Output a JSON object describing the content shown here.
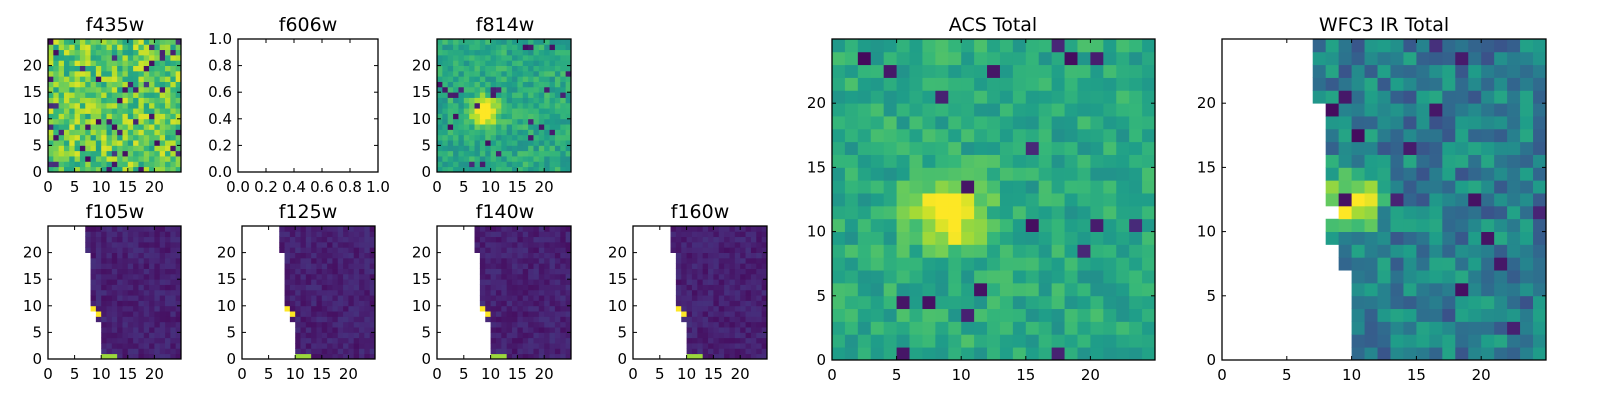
{
  "chart_data": [
    {
      "type": "heatmap",
      "title": "f435w",
      "pattern": "noise",
      "seed": 11,
      "colormap": "viridis",
      "x_ticks": [
        "0",
        "5",
        "10",
        "15",
        "20"
      ],
      "y_ticks": [
        "0",
        "5",
        "10",
        "15",
        "20"
      ],
      "xlim": [
        0,
        25
      ],
      "ylim": [
        0,
        25
      ]
    },
    {
      "type": "heatmap",
      "title": "f606w",
      "pattern": "empty",
      "x_ticks": [
        "0.0",
        "0.2",
        "0.4",
        "0.6",
        "0.8",
        "1.0"
      ],
      "y_ticks": [
        "0.0",
        "0.2",
        "0.4",
        "0.6",
        "0.8",
        "1.0"
      ],
      "xlim": [
        0,
        1
      ],
      "ylim": [
        0,
        1
      ]
    },
    {
      "type": "heatmap",
      "title": "f814w",
      "pattern": "blob",
      "seed": 23,
      "colormap": "viridis",
      "x_ticks": [
        "0",
        "5",
        "10",
        "15",
        "20"
      ],
      "y_ticks": [
        "0",
        "5",
        "10",
        "15",
        "20"
      ],
      "xlim": [
        0,
        25
      ],
      "ylim": [
        0,
        25
      ]
    },
    {
      "type": "heatmap",
      "title": "f105w",
      "pattern": "ir",
      "seed": 31,
      "colormap": "viridis",
      "x_ticks": [
        "0",
        "5",
        "10",
        "15",
        "20"
      ],
      "y_ticks": [
        "0",
        "5",
        "10",
        "15",
        "20"
      ],
      "xlim": [
        0,
        25
      ],
      "ylim": [
        0,
        25
      ]
    },
    {
      "type": "heatmap",
      "title": "f125w",
      "pattern": "ir",
      "seed": 37,
      "colormap": "viridis",
      "x_ticks": [
        "0",
        "5",
        "10",
        "15",
        "20"
      ],
      "y_ticks": [
        "0",
        "5",
        "10",
        "15",
        "20"
      ],
      "xlim": [
        0,
        25
      ],
      "ylim": [
        0,
        25
      ]
    },
    {
      "type": "heatmap",
      "title": "f140w",
      "pattern": "ir",
      "seed": 41,
      "colormap": "viridis",
      "x_ticks": [
        "0",
        "5",
        "10",
        "15",
        "20"
      ],
      "y_ticks": [
        "0",
        "5",
        "10",
        "15",
        "20"
      ],
      "xlim": [
        0,
        25
      ],
      "ylim": [
        0,
        25
      ]
    },
    {
      "type": "heatmap",
      "title": "f160w",
      "pattern": "ir",
      "seed": 43,
      "colormap": "viridis",
      "x_ticks": [
        "0",
        "5",
        "10",
        "15",
        "20"
      ],
      "y_ticks": [
        "0",
        "5",
        "10",
        "15",
        "20"
      ],
      "xlim": [
        0,
        25
      ],
      "ylim": [
        0,
        25
      ]
    },
    {
      "type": "heatmap",
      "title": "ACS Total",
      "pattern": "blob",
      "seed": 53,
      "colormap": "viridis",
      "x_ticks": [
        "0",
        "5",
        "10",
        "15",
        "20"
      ],
      "y_ticks": [
        "0",
        "5",
        "10",
        "15",
        "20"
      ],
      "xlim": [
        0,
        25
      ],
      "ylim": [
        0,
        25
      ]
    },
    {
      "type": "heatmap",
      "title": "WFC3 IR Total",
      "pattern": "irtotal",
      "seed": 61,
      "colormap": "viridis",
      "x_ticks": [
        "0",
        "5",
        "10",
        "15",
        "20"
      ],
      "y_ticks": [
        "0",
        "5",
        "10",
        "15",
        "20"
      ],
      "xlim": [
        0,
        25
      ],
      "ylim": [
        0,
        25
      ]
    }
  ]
}
